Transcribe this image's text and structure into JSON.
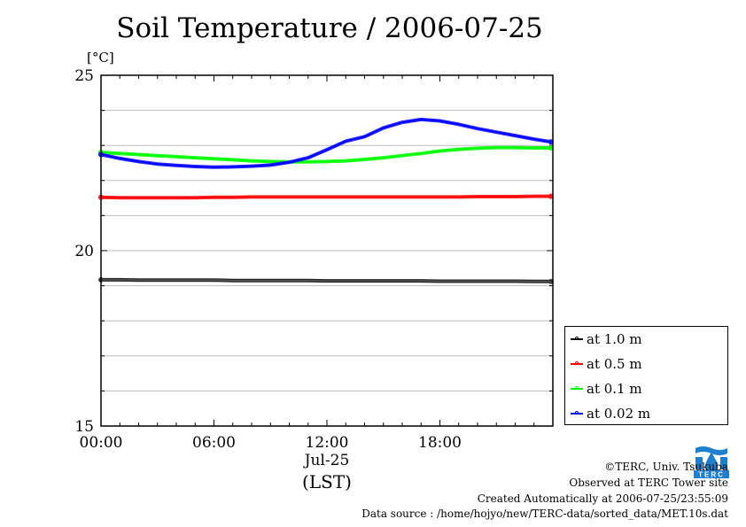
{
  "chart_data": {
    "type": "line",
    "title": "Soil Temperature / 2006-07-25",
    "ylabel": "[°C]",
    "xlabel": "(LST)",
    "date_label": "Jul-25",
    "ylim": [
      15,
      25
    ],
    "xlim": [
      0,
      24
    ],
    "y_ticks": [
      {
        "value": 15,
        "label": "15"
      },
      {
        "value": 20,
        "label": "20"
      },
      {
        "value": 25,
        "label": "25"
      }
    ],
    "x_ticks": [
      {
        "value": 0,
        "label": "00:00"
      },
      {
        "value": 6,
        "label": "06:00"
      },
      {
        "value": 12,
        "label": "12:00"
      },
      {
        "value": 18,
        "label": "18:00"
      }
    ],
    "x": [
      0,
      1,
      2,
      3,
      4,
      5,
      6,
      7,
      8,
      9,
      10,
      11,
      12,
      13,
      14,
      15,
      16,
      17,
      18,
      19,
      20,
      21,
      22,
      23,
      23.9
    ],
    "series": [
      {
        "name": "at 1.0 m",
        "color": "#000000",
        "values": [
          19.17,
          19.17,
          19.16,
          19.16,
          19.16,
          19.16,
          19.16,
          19.15,
          19.15,
          19.15,
          19.15,
          19.15,
          19.14,
          19.14,
          19.14,
          19.14,
          19.14,
          19.14,
          19.13,
          19.13,
          19.13,
          19.13,
          19.13,
          19.12,
          19.12
        ]
      },
      {
        "name": "at 0.5 m",
        "color": "#ff0000",
        "values": [
          21.52,
          21.51,
          21.51,
          21.51,
          21.51,
          21.51,
          21.52,
          21.52,
          21.53,
          21.53,
          21.53,
          21.53,
          21.53,
          21.53,
          21.53,
          21.53,
          21.53,
          21.53,
          21.53,
          21.53,
          21.54,
          21.54,
          21.54,
          21.55,
          21.55
        ]
      },
      {
        "name": "at 0.1 m",
        "color": "#00ff00",
        "values": [
          22.8,
          22.77,
          22.74,
          22.71,
          22.68,
          22.65,
          22.62,
          22.59,
          22.56,
          22.54,
          22.53,
          22.53,
          22.54,
          22.56,
          22.6,
          22.65,
          22.71,
          22.77,
          22.84,
          22.89,
          22.92,
          22.94,
          22.94,
          22.93,
          22.93
        ]
      },
      {
        "name": "at 0.02 m",
        "color": "#0000ff",
        "values": [
          22.74,
          22.63,
          22.54,
          22.47,
          22.43,
          22.4,
          22.38,
          22.39,
          22.41,
          22.44,
          22.52,
          22.65,
          22.88,
          23.12,
          23.25,
          23.5,
          23.66,
          23.74,
          23.7,
          23.6,
          23.48,
          23.38,
          23.28,
          23.18,
          23.1
        ]
      }
    ]
  },
  "footer": {
    "copyright": "©TERC, Univ. Tsukuba",
    "observed": "Observed at TERC Tower site",
    "created": "Created Automatically at 2006-07-25/23:55:09",
    "source": "Data source : /home/hojyo/new/TERC-data/sorted_data/MET.10s.dat",
    "logo_text": "TERC"
  }
}
